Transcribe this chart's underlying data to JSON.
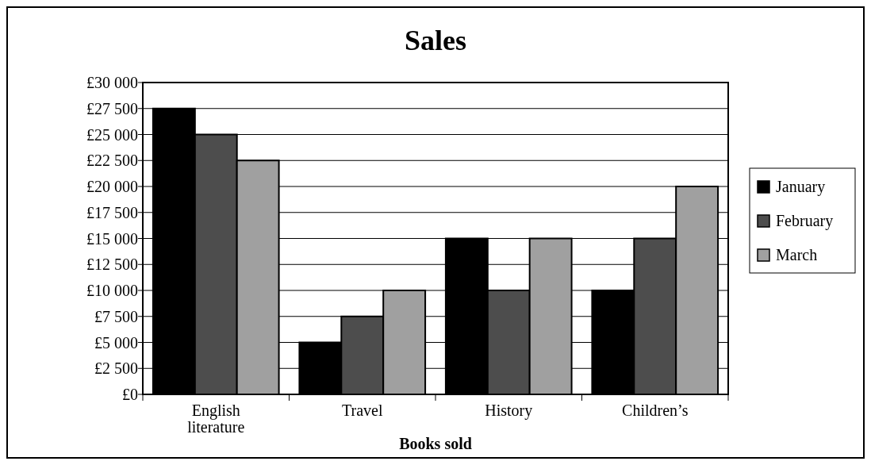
{
  "chart_data": {
    "type": "bar",
    "title": "Sales",
    "xlabel": "Books sold",
    "categories": [
      "English literature",
      "Travel",
      "History",
      "Children’s"
    ],
    "series": [
      {
        "name": "January",
        "color": "#000000",
        "values": [
          27500,
          5000,
          15000,
          10000
        ]
      },
      {
        "name": "February",
        "color": "#4d4d4d",
        "values": [
          25000,
          7500,
          10000,
          15000
        ]
      },
      {
        "name": "March",
        "color": "#a0a0a0",
        "values": [
          22500,
          10000,
          15000,
          20000
        ]
      }
    ],
    "ylim": [
      0,
      30000
    ],
    "yticks": [
      {
        "value": 0,
        "label": "£0"
      },
      {
        "value": 2500,
        "label": "£2 500"
      },
      {
        "value": 5000,
        "label": "£5 000"
      },
      {
        "value": 7500,
        "label": "£7 500"
      },
      {
        "value": 10000,
        "label": "£10 000"
      },
      {
        "value": 12500,
        "label": "£12 500"
      },
      {
        "value": 15000,
        "label": "£15 000"
      },
      {
        "value": 17500,
        "label": "£17 500"
      },
      {
        "value": 20000,
        "label": "£20 000"
      },
      {
        "value": 22500,
        "label": "£22 500"
      },
      {
        "value": 25000,
        "label": "£25 000"
      },
      {
        "value": 27500,
        "label": "£27 500"
      },
      {
        "value": 30000,
        "label": "£30 000"
      }
    ],
    "grid": "y",
    "legend": "right"
  }
}
